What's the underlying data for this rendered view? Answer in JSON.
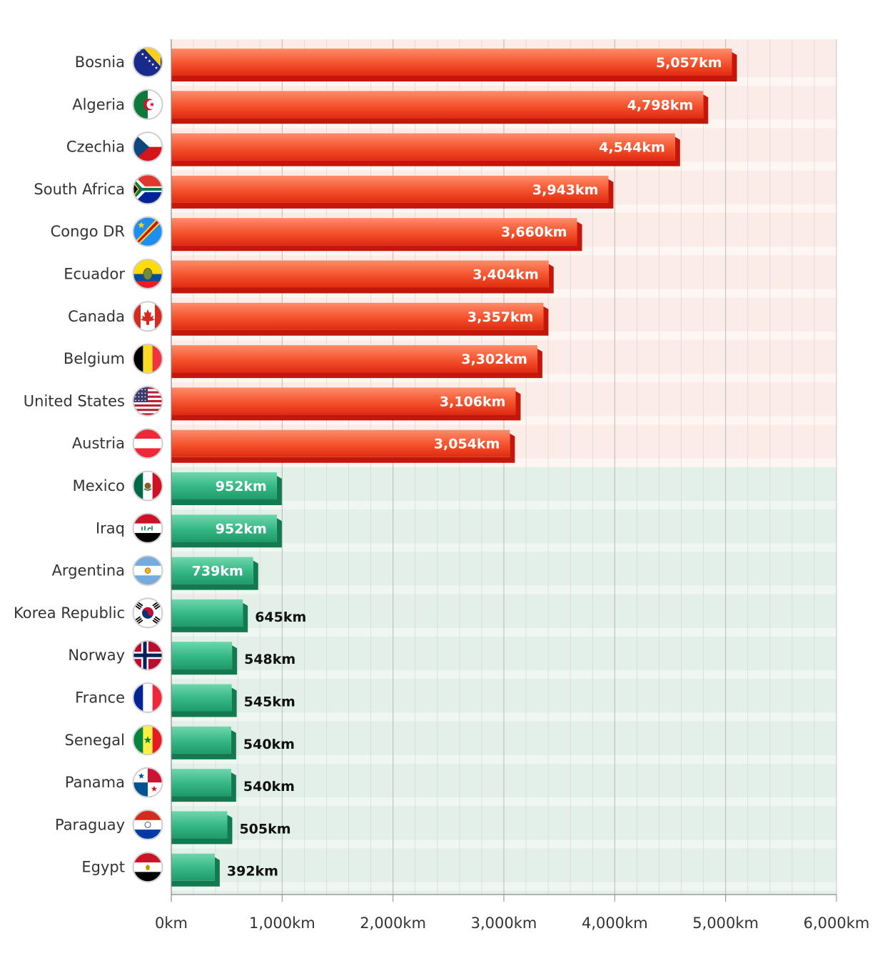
{
  "chart_data": {
    "type": "bar",
    "orientation": "horizontal",
    "title": "",
    "xlabel": "",
    "ylabel": "",
    "xlim": [
      0,
      6000
    ],
    "tick_labels": [
      "0km",
      "1,000km",
      "2,000km",
      "3,000km",
      "4,000km",
      "5,000km",
      "6,000km"
    ],
    "grid": true,
    "legend": "none",
    "colors": {
      "top_group": "#e83a1e",
      "bottom_group": "#2fb07f"
    },
    "categories": [
      {
        "name": "Bosnia",
        "value": 5057,
        "label": "5,057km",
        "group": "top",
        "flag": "bosnia-flag-icon"
      },
      {
        "name": "Algeria",
        "value": 4798,
        "label": "4,798km",
        "group": "top",
        "flag": "algeria-flag-icon"
      },
      {
        "name": "Czechia",
        "value": 4544,
        "label": "4,544km",
        "group": "top",
        "flag": "czechia-flag-icon"
      },
      {
        "name": "South Africa",
        "value": 3943,
        "label": "3,943km",
        "group": "top",
        "flag": "south-africa-flag-icon"
      },
      {
        "name": "Congo DR",
        "value": 3660,
        "label": "3,660km",
        "group": "top",
        "flag": "congo-dr-flag-icon"
      },
      {
        "name": "Ecuador",
        "value": 3404,
        "label": "3,404km",
        "group": "top",
        "flag": "ecuador-flag-icon"
      },
      {
        "name": "Canada",
        "value": 3357,
        "label": "3,357km",
        "group": "top",
        "flag": "canada-flag-icon"
      },
      {
        "name": "Belgium",
        "value": 3302,
        "label": "3,302km",
        "group": "top",
        "flag": "belgium-flag-icon"
      },
      {
        "name": "United States",
        "value": 3106,
        "label": "3,106km",
        "group": "top",
        "flag": "united-states-flag-icon"
      },
      {
        "name": "Austria",
        "value": 3054,
        "label": "3,054km",
        "group": "top",
        "flag": "austria-flag-icon"
      },
      {
        "name": "Mexico",
        "value": 952,
        "label": "952km",
        "group": "bottom",
        "flag": "mexico-flag-icon"
      },
      {
        "name": "Iraq",
        "value": 952,
        "label": "952km",
        "group": "bottom",
        "flag": "iraq-flag-icon"
      },
      {
        "name": "Argentina",
        "value": 739,
        "label": "739km",
        "group": "bottom",
        "flag": "argentina-flag-icon"
      },
      {
        "name": "Korea Republic",
        "value": 645,
        "label": "645km",
        "group": "bottom",
        "flag": "korea-republic-flag-icon"
      },
      {
        "name": "Norway",
        "value": 548,
        "label": "548km",
        "group": "bottom",
        "flag": "norway-flag-icon"
      },
      {
        "name": "France",
        "value": 545,
        "label": "545km",
        "group": "bottom",
        "flag": "france-flag-icon"
      },
      {
        "name": "Senegal",
        "value": 540,
        "label": "540km",
        "group": "bottom",
        "flag": "senegal-flag-icon"
      },
      {
        "name": "Panama",
        "value": 540,
        "label": "540km",
        "group": "bottom",
        "flag": "panama-flag-icon"
      },
      {
        "name": "Paraguay",
        "value": 505,
        "label": "505km",
        "group": "bottom",
        "flag": "paraguay-flag-icon"
      },
      {
        "name": "Egypt",
        "value": 392,
        "label": "392km",
        "group": "bottom",
        "flag": "egypt-flag-icon"
      }
    ]
  }
}
